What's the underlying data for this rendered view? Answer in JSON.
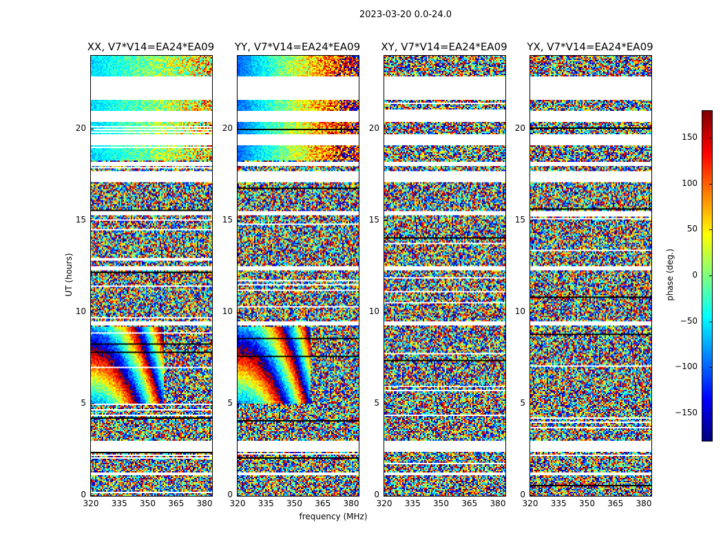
{
  "chart_data": {
    "type": "heatmap",
    "title": "2023-03-20 0.0-24.0",
    "xlabel": "frequency (MHz)",
    "ylabel": "UT (hours)",
    "xlim": [
      320,
      384
    ],
    "ylim": [
      0,
      24
    ],
    "x_ticks": [
      "320",
      "335",
      "350",
      "365",
      "380"
    ],
    "x_tick_values": [
      320,
      335,
      350,
      365,
      380
    ],
    "y_ticks": [
      "0",
      "5",
      "10",
      "15",
      "20"
    ],
    "y_tick_values": [
      0,
      5,
      10,
      15,
      20
    ],
    "panels": [
      {
        "title": "XX, V7*V14=EA24*EA09",
        "smooth_phase_start": -60,
        "smooth_phase_end": 60
      },
      {
        "title": "YY, V7*V14=EA24*EA09",
        "smooth_phase_start": -100,
        "smooth_phase_end": 160
      },
      {
        "title": "XY, V7*V14=EA24*EA09",
        "smooth_phase_start": null,
        "smooth_phase_end": null
      },
      {
        "title": "YX, V7*V14=EA24*EA09",
        "smooth_phase_start": null,
        "smooth_phase_end": null
      }
    ],
    "data_gaps_hours": [
      [
        21.6,
        22.9
      ],
      [
        20.4,
        21.0
      ],
      [
        19.1,
        19.7
      ],
      [
        18.0,
        18.2
      ],
      [
        17.1,
        17.7
      ],
      [
        15.3,
        15.5
      ],
      [
        12.3,
        12.5
      ],
      [
        9.3,
        9.5
      ],
      [
        2.4,
        3.0
      ],
      [
        1.1,
        1.3
      ]
    ],
    "colorbar": {
      "label": "phase (deg.)",
      "range": [
        -180,
        180
      ],
      "ticks": [
        "150",
        "100",
        "50",
        "0",
        "−50",
        "−100",
        "−150"
      ],
      "tick_values": [
        150,
        100,
        50,
        0,
        -50,
        -100,
        -150
      ],
      "colormap": "jet"
    }
  }
}
